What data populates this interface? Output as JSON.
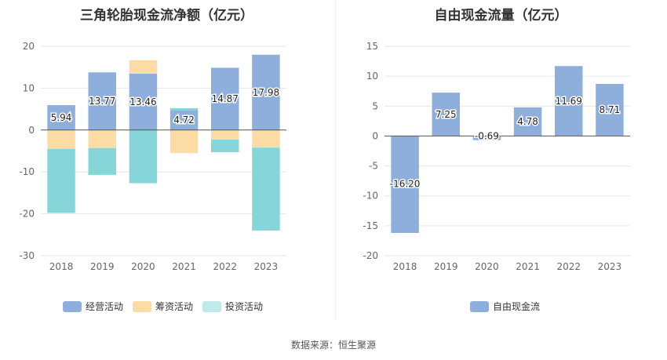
{
  "chart_data": [
    {
      "type": "bar",
      "stacked": true,
      "title": "三角轮胎现金流净额（亿元）",
      "categories": [
        "2018",
        "2019",
        "2020",
        "2021",
        "2022",
        "2023"
      ],
      "ylim": [
        -30,
        20
      ],
      "yticks": [
        20,
        10,
        0,
        -10,
        -20,
        -30
      ],
      "series": [
        {
          "name": "经营活动",
          "color": "#8eaedb",
          "values": [
            5.94,
            13.77,
            13.46,
            4.72,
            14.87,
            17.98
          ]
        },
        {
          "name": "筹资活动",
          "color": "#fcdca4",
          "values": [
            -4.5,
            -4.3,
            3.2,
            -5.5,
            -2.3,
            -4.2
          ]
        },
        {
          "name": "投资活动",
          "color": "#86d6d9",
          "values": [
            -15.3,
            -6.4,
            -12.7,
            0.5,
            -3.0,
            -19.8
          ]
        }
      ],
      "data_labels": [
        "5.94",
        "13.77",
        "13.46",
        "4.72",
        "14.87",
        "17.98"
      ],
      "legend": "bottom"
    },
    {
      "type": "bar",
      "title": "自由现金流量（亿元）",
      "categories": [
        "2018",
        "2019",
        "2020",
        "2021",
        "2022",
        "2023"
      ],
      "ylim": [
        -20,
        15
      ],
      "yticks": [
        15,
        10,
        5,
        0,
        -5,
        -10,
        -15,
        -20
      ],
      "series": [
        {
          "name": "自由现金流",
          "color": "#8eaedb",
          "values": [
            -16.2,
            7.25,
            -0.69,
            4.78,
            11.69,
            8.71
          ]
        }
      ],
      "data_labels": [
        "-16.20",
        "7.25",
        "-0.69",
        "4.78",
        "11.69",
        "8.71"
      ],
      "legend": "bottom"
    }
  ],
  "source": "数据来源：恒生聚源"
}
